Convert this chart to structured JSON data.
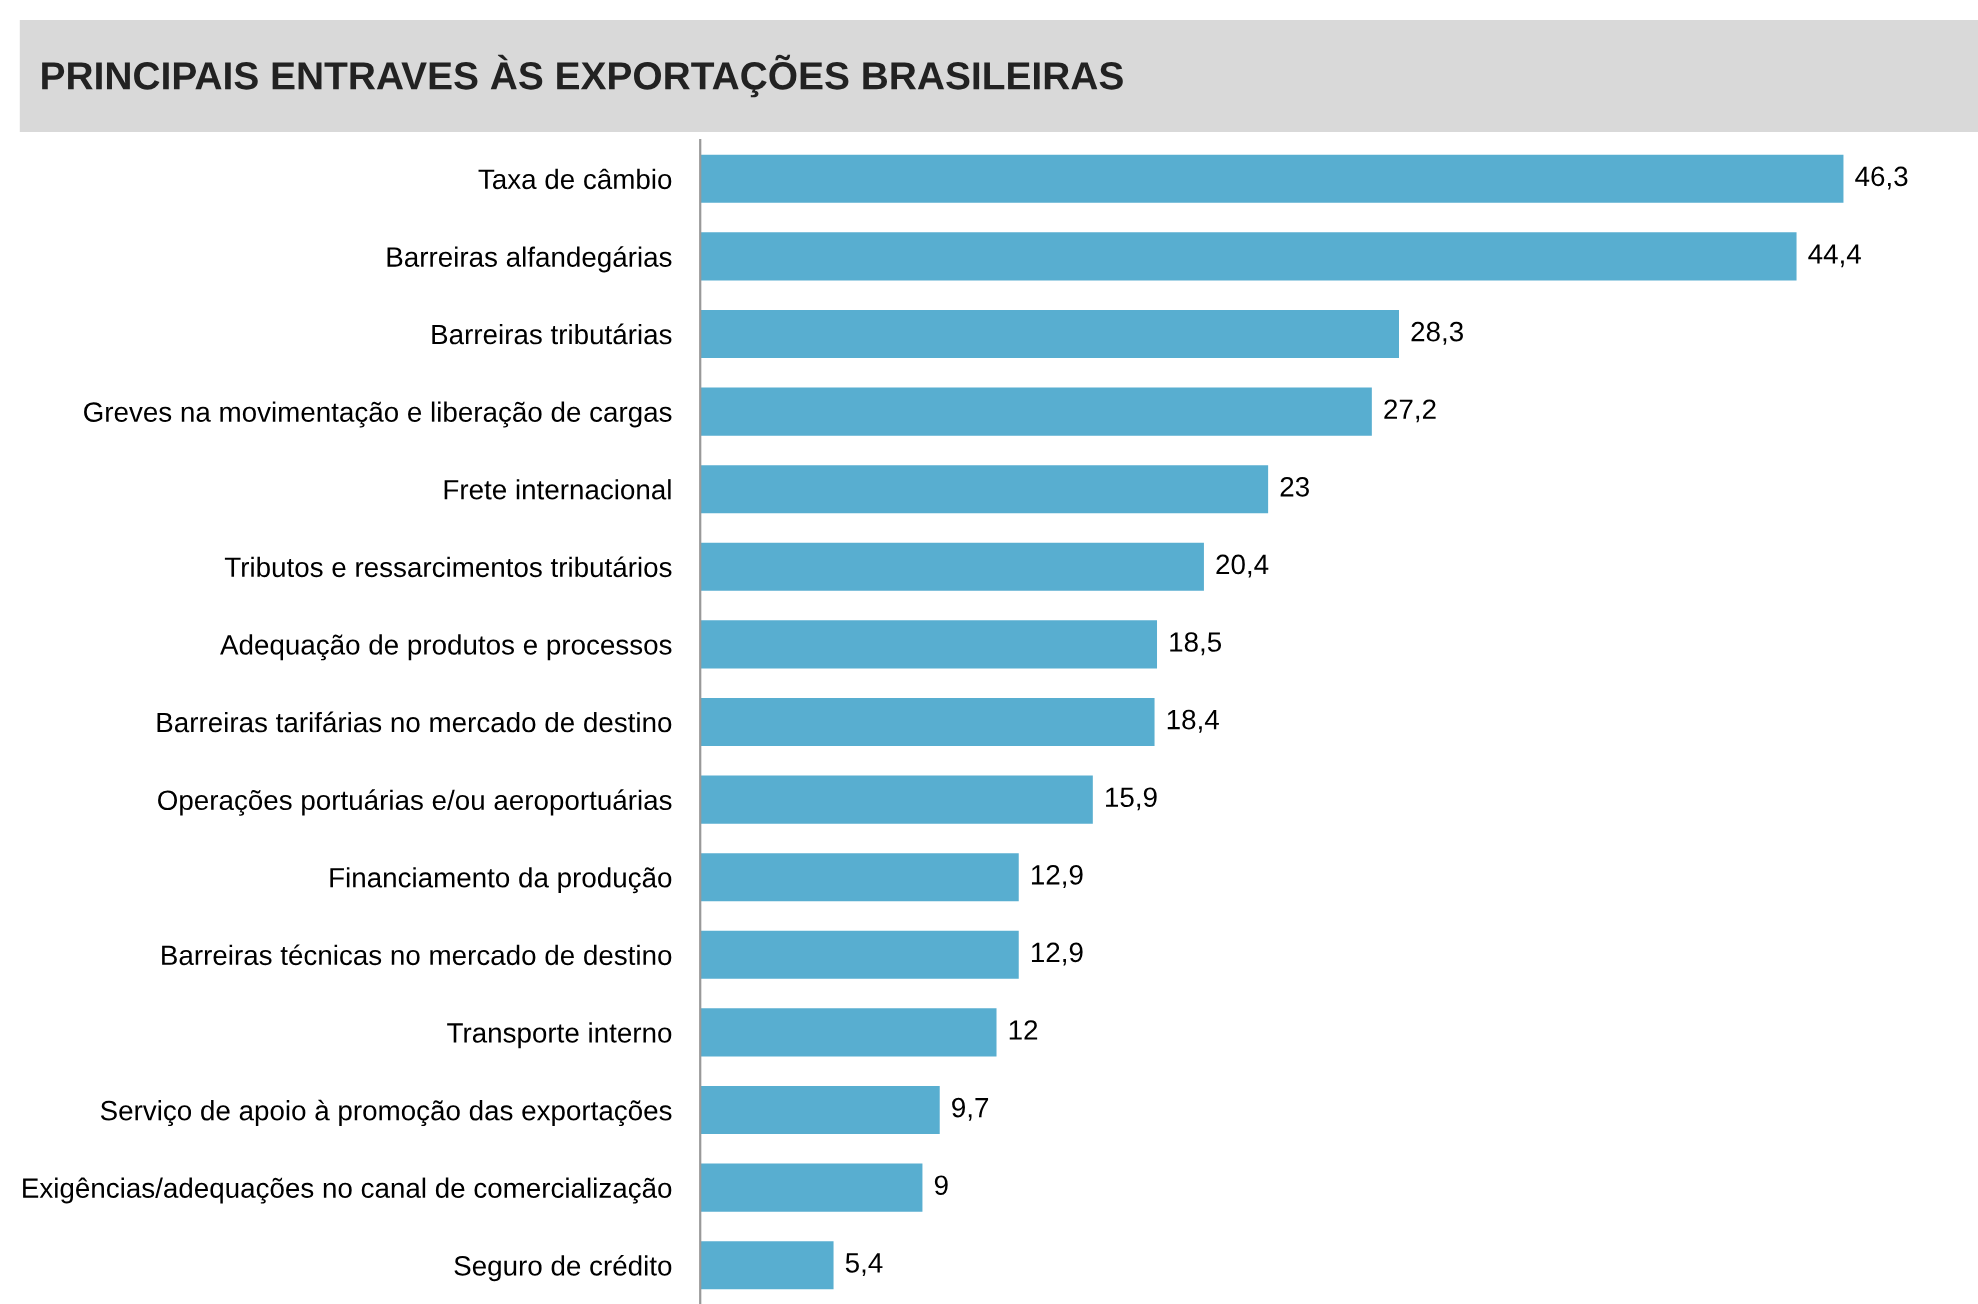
{
  "chart_data": {
    "type": "bar",
    "orientation": "horizontal",
    "title": "PRINCIPAIS ENTRAVES ÀS EXPORTAÇÕES BRASILEIRAS",
    "categories": [
      "Taxa de câmbio",
      "Barreiras alfandegárias",
      "Barreiras tributárias",
      "Greves na movimentação e liberação de cargas",
      "Frete internacional",
      "Tributos e ressarcimentos tributários",
      "Adequação de produtos e processos",
      "Barreiras tarifárias no mercado de destino",
      "Operações portuárias e/ou aeroportuárias",
      "Financiamento da produção",
      "Barreiras técnicas no mercado de destino",
      "Transporte interno",
      "Serviço de apoio à promoção das exportações",
      "Exigências/adequações no canal de comercialização",
      "Seguro de crédito"
    ],
    "values": [
      46.3,
      44.4,
      28.3,
      27.2,
      23,
      20.4,
      18.5,
      18.4,
      15.9,
      12.9,
      12.9,
      12,
      9.7,
      9,
      5.4
    ],
    "value_labels": [
      "46,3",
      "44,4",
      "28,3",
      "27,2",
      "23",
      "20,4",
      "18,5",
      "18,4",
      "15,9",
      "12,9",
      "12,9",
      "12",
      "9,7",
      "9",
      "5,4"
    ],
    "color": "#58aed0"
  }
}
